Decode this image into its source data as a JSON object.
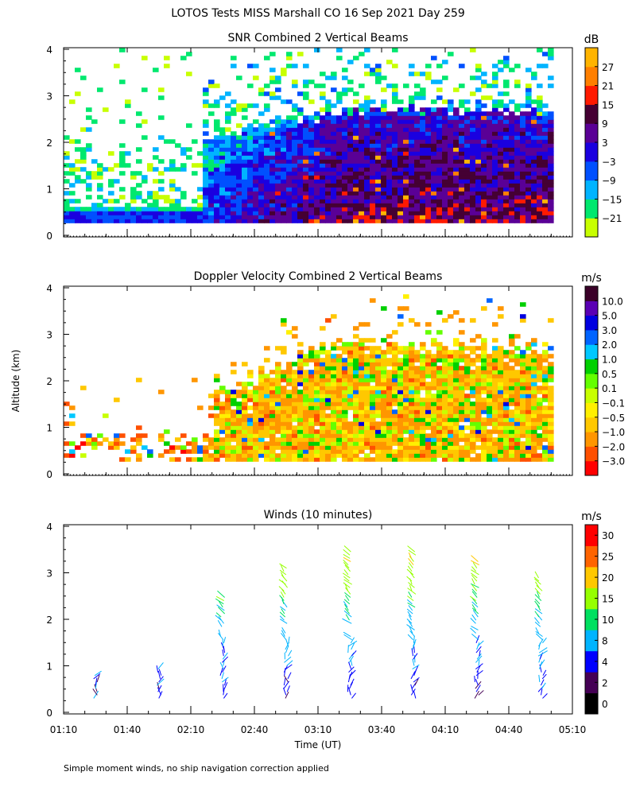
{
  "figure": {
    "title": "LOTOS Tests MISS Marshall CO  16 Sep 2021 Day 259",
    "xlabel": "Time (UT)",
    "ylabel": "Altitude (km)",
    "footnote": "Simple moment winds, no ship navigation correction applied"
  },
  "colors": {
    "jet": [
      "#c8ff00",
      "#00e86e",
      "#00b4ff",
      "#0050ff",
      "#1a00e0",
      "#5a0096",
      "#450033",
      "#ff1a00",
      "#ff7f00",
      "#ffb400"
    ],
    "velocity": [
      "#ff0000",
      "#ff5000",
      "#ff9600",
      "#ffc800",
      "#fff000",
      "#c8ff00",
      "#64ff00",
      "#00d000",
      "#00c8ff",
      "#0064ff",
      "#0000e0",
      "#5a00b4",
      "#3a0028"
    ],
    "winds": [
      "#000000",
      "#450055",
      "#0000ff",
      "#00b4ff",
      "#00e060",
      "#96ff00",
      "#ffc800",
      "#ff6400",
      "#ff0000"
    ],
    "panel_frame": "#000000"
  },
  "chart_data": [
    {
      "type": "heatmap",
      "title": "SNR Combined 2 Vertical Beams",
      "colorbar_label": "dB",
      "colorbar_ticks": [
        "27",
        "21",
        "15",
        "9",
        "3",
        "−3",
        "−9",
        "−15",
        "−21"
      ],
      "y_ticks": [
        "0",
        "1",
        "2",
        "3",
        "4"
      ],
      "x_ticks": [
        "01:10",
        "01:40",
        "02:10",
        "02:40",
        "03:10",
        "03:40",
        "04:10",
        "04:40",
        "05:10"
      ],
      "xlim": [
        1.1667,
        5.1667
      ],
      "ylim": [
        0,
        4
      ],
      "data_summary": {
        "early_period": "weak return (-21 to -9 dB) near 0.3-0.6 km and patchy up to 2 km",
        "later_period": "strong return (-3 to 15 dB) between 0.3 and 2.6 km, weak patches to 4 km"
      }
    },
    {
      "type": "heatmap",
      "title": "Doppler Velocity Combined 2 Vertical Beams",
      "colorbar_label": "m/s",
      "colorbar_ticks": [
        "10.0",
        "5.0",
        "3.0",
        "2.0",
        "1.0",
        "0.5",
        "0.1",
        "−0.1",
        "−0.5",
        "−1.0",
        "−2.0",
        "−3.0"
      ],
      "y_ticks": [
        "0",
        "1",
        "2",
        "3",
        "4"
      ],
      "x_ticks": [
        "01:10",
        "01:40",
        "02:10",
        "02:40",
        "03:10",
        "03:40",
        "04:10",
        "04:40",
        "05:10"
      ],
      "xlim": [
        1.1667,
        5.1667
      ],
      "ylim": [
        0,
        4
      ],
      "data_summary": {
        "dominant": "-0.5 to -2.0 m/s (orange) across 0.3-2.6 km after 02:10",
        "secondary": "green/yellow (0.1 to 0.5 m/s) patches, isolated blue cells"
      }
    },
    {
      "type": "scatter",
      "title": "Winds (10 minutes)",
      "colorbar_label": "m/s",
      "colorbar_ticks": [
        "30",
        "25",
        "20",
        "15",
        "10",
        "8",
        "4",
        "2",
        "0"
      ],
      "y_ticks": [
        "0",
        "1",
        "2",
        "3",
        "4"
      ],
      "x_ticks": [
        "01:10",
        "01:40",
        "02:10",
        "02:40",
        "03:10",
        "03:40",
        "04:10",
        "04:40",
        "05:10"
      ],
      "xlim": [
        1.1667,
        5.1667
      ],
      "ylim": [
        0,
        4
      ],
      "profiles": [
        {
          "time": "01:25",
          "top_km": 0.8
        },
        {
          "time": "01:55",
          "top_km": 1.0
        },
        {
          "time": "02:25",
          "top_km": 2.5
        },
        {
          "time": "02:55",
          "top_km": 3.1
        },
        {
          "time": "03:25",
          "top_km": 3.5
        },
        {
          "time": "03:55",
          "top_km": 3.5
        },
        {
          "time": "04:25",
          "top_km": 3.3
        },
        {
          "time": "04:55",
          "top_km": 2.9
        }
      ],
      "speed_by_height": [
        {
          "altitude_km": 0.5,
          "speed_ms": 3
        },
        {
          "altitude_km": 1.0,
          "speed_ms": 4
        },
        {
          "altitude_km": 1.5,
          "speed_ms": 5
        },
        {
          "altitude_km": 2.0,
          "speed_ms": 7
        },
        {
          "altitude_km": 2.5,
          "speed_ms": 10
        },
        {
          "altitude_km": 3.0,
          "speed_ms": 13
        },
        {
          "altitude_km": 3.5,
          "speed_ms": 16
        }
      ]
    }
  ]
}
